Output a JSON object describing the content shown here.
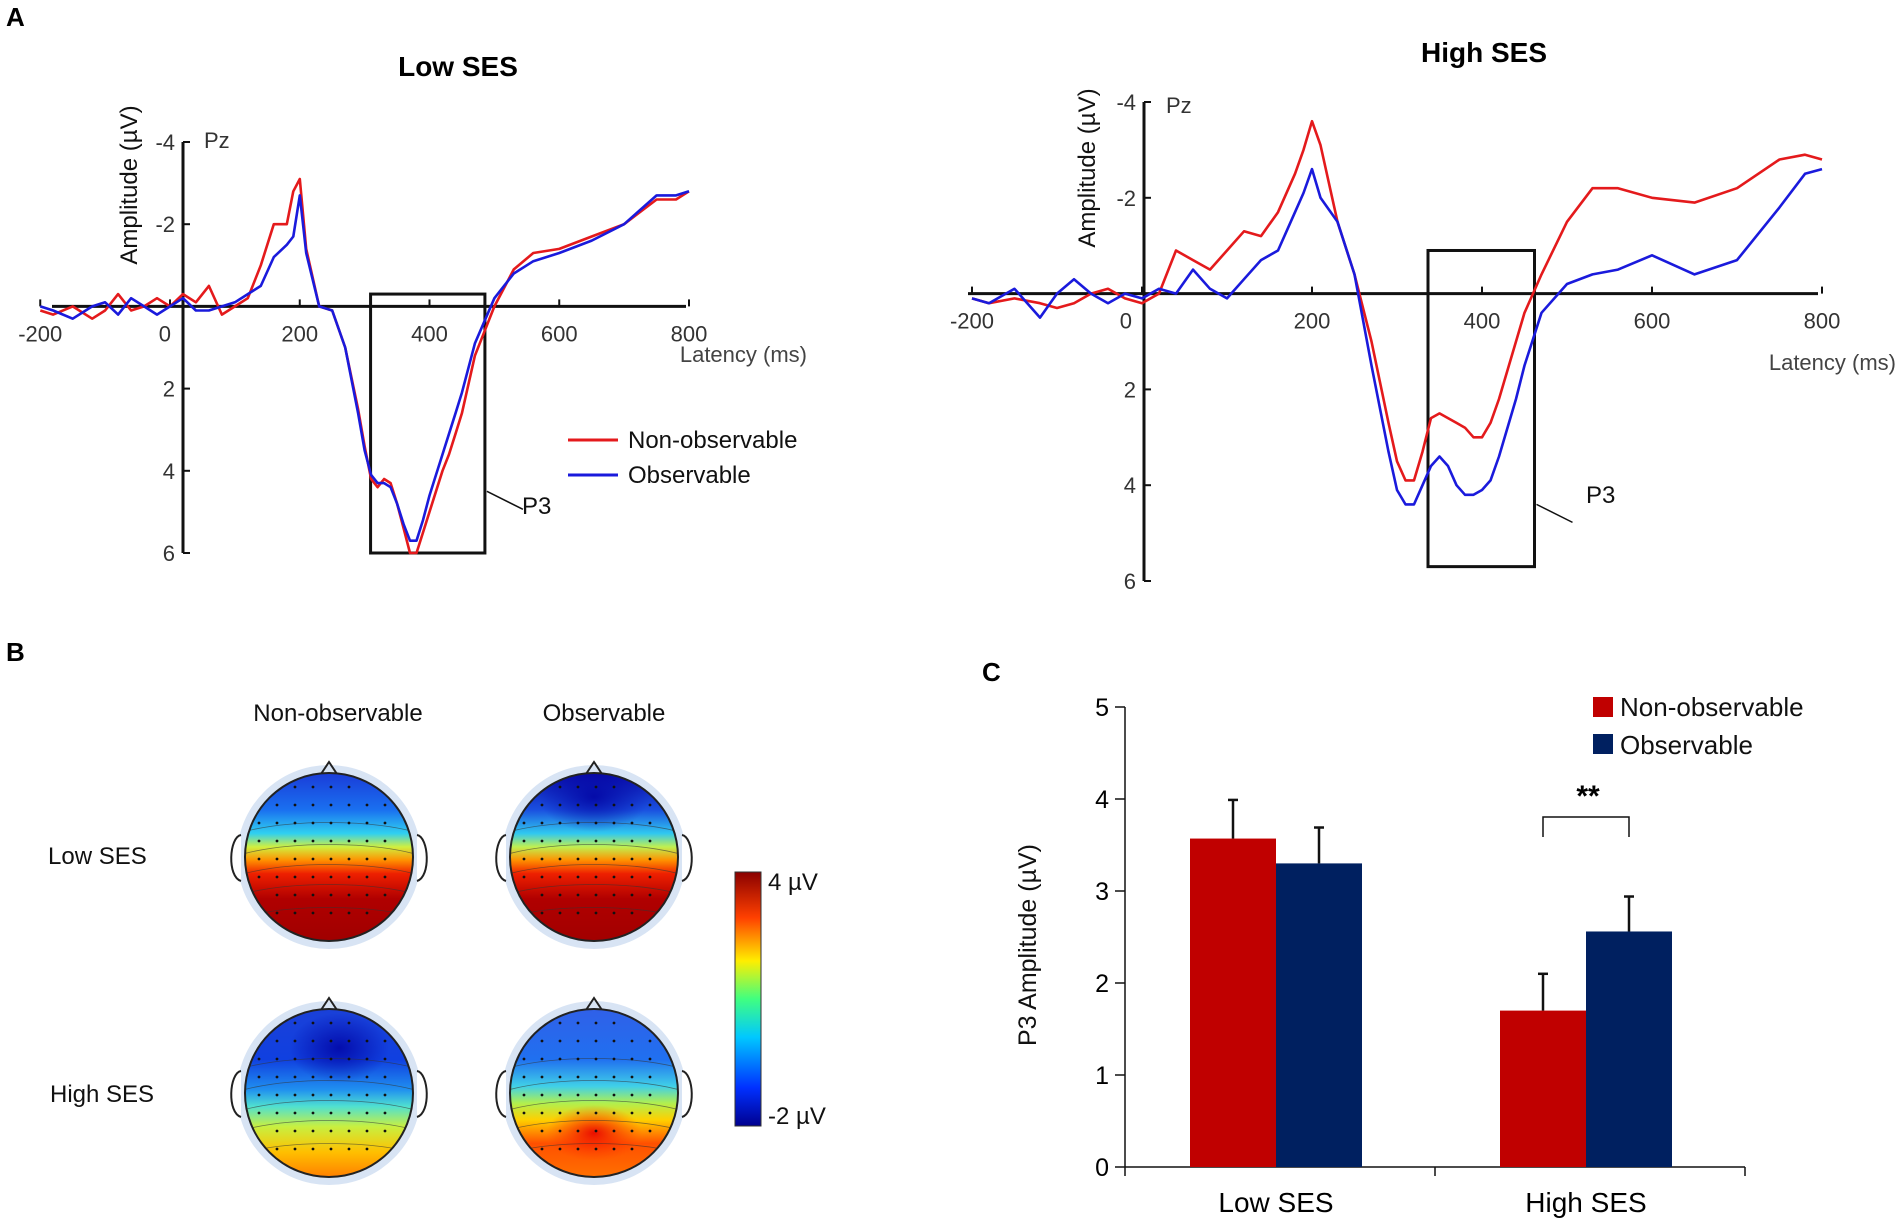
{
  "panels": {
    "a": "A",
    "b": "B",
    "c": "C"
  },
  "legend": {
    "non_observable": "Non-observable",
    "observable": "Observable"
  },
  "colors": {
    "non_observable_line": "#e41a1c",
    "observable_line": "#1a1adc",
    "non_observable_bar": "#c00000",
    "observable_bar": "#002060"
  },
  "chart_data": [
    {
      "type": "line",
      "title": "Low SES",
      "channel": "Pz",
      "xlabel": "Latency (ms)",
      "ylabel": "Amplitude (µV)",
      "xlim": [
        -200,
        800
      ],
      "ylim": [
        -4,
        6
      ],
      "y_inverted": true,
      "xticks": [
        -200,
        0,
        200,
        400,
        600,
        800
      ],
      "xtick_labels": [
        "-200",
        "0",
        "200",
        "400",
        "600",
        "800"
      ],
      "ytick_labels": [
        "-4",
        "-2",
        "2",
        "4",
        "6"
      ],
      "yticks": [
        -4,
        -2,
        2,
        4,
        6
      ],
      "window": [
        340,
        470
      ],
      "annotation": "P3",
      "x": [
        -200,
        -180,
        -150,
        -120,
        -100,
        -80,
        -60,
        -40,
        -20,
        0,
        20,
        40,
        60,
        80,
        100,
        120,
        140,
        160,
        180,
        190,
        200,
        210,
        230,
        250,
        270,
        290,
        300,
        310,
        320,
        330,
        340,
        350,
        360,
        370,
        380,
        390,
        400,
        410,
        420,
        430,
        440,
        450,
        470,
        500,
        530,
        560,
        600,
        650,
        700,
        750,
        780,
        800
      ],
      "series": [
        {
          "name": "Non-observable",
          "values": [
            0.1,
            0.2,
            0.0,
            0.3,
            0.1,
            -0.3,
            0.1,
            0.0,
            -0.2,
            0.0,
            -0.3,
            -0.1,
            -0.5,
            0.2,
            0.0,
            -0.2,
            -1.0,
            -2.0,
            -2.0,
            -2.8,
            -3.1,
            -1.4,
            0.0,
            0.1,
            1.0,
            2.5,
            3.4,
            4.2,
            4.4,
            4.2,
            4.3,
            4.8,
            5.4,
            6.0,
            6.0,
            5.5,
            5.0,
            4.5,
            4.0,
            3.6,
            3.1,
            2.6,
            1.2,
            0.0,
            -0.9,
            -1.3,
            -1.4,
            -1.7,
            -2.0,
            -2.6,
            -2.6,
            -2.8
          ]
        },
        {
          "name": "Observable",
          "values": [
            0.0,
            0.1,
            0.3,
            0.0,
            -0.1,
            0.2,
            -0.2,
            0.0,
            0.2,
            0.0,
            -0.2,
            0.1,
            0.1,
            0.0,
            -0.1,
            -0.3,
            -0.5,
            -1.2,
            -1.5,
            -1.7,
            -2.7,
            -1.3,
            0.0,
            0.1,
            1.0,
            2.6,
            3.5,
            4.1,
            4.3,
            4.3,
            4.4,
            4.8,
            5.3,
            5.7,
            5.7,
            5.2,
            4.6,
            4.1,
            3.6,
            3.1,
            2.6,
            2.1,
            0.9,
            -0.2,
            -0.8,
            -1.1,
            -1.3,
            -1.6,
            -2.0,
            -2.7,
            -2.7,
            -2.8
          ]
        }
      ]
    },
    {
      "type": "line",
      "title": "High SES",
      "channel": "Pz",
      "xlabel": "Latency (ms)",
      "ylabel": "Amplitude (µV)",
      "xlim": [
        -200,
        800
      ],
      "ylim": [
        -4,
        6
      ],
      "y_inverted": true,
      "xticks": [
        -200,
        0,
        200,
        400,
        600,
        800
      ],
      "xtick_labels": [
        "-200",
        "0",
        "200",
        "400",
        "600",
        "800"
      ],
      "ytick_labels": [
        "-4",
        "-2",
        "2",
        "4",
        "6"
      ],
      "yticks": [
        -4,
        -2,
        2,
        4,
        6
      ],
      "window": [
        360,
        450
      ],
      "annotation": "P3",
      "x": [
        -200,
        -180,
        -150,
        -120,
        -100,
        -80,
        -60,
        -40,
        -20,
        0,
        20,
        40,
        60,
        80,
        100,
        120,
        140,
        160,
        180,
        190,
        200,
        210,
        230,
        250,
        270,
        290,
        300,
        310,
        320,
        330,
        340,
        350,
        360,
        370,
        380,
        390,
        400,
        410,
        420,
        430,
        440,
        450,
        470,
        500,
        530,
        560,
        600,
        650,
        700,
        750,
        780,
        800
      ],
      "series": [
        {
          "name": "Non-observable",
          "values": [
            0.1,
            0.2,
            0.1,
            0.2,
            0.3,
            0.2,
            0.0,
            -0.1,
            0.1,
            0.2,
            0.0,
            -0.9,
            -0.7,
            -0.5,
            -0.9,
            -1.3,
            -1.2,
            -1.7,
            -2.5,
            -3.0,
            -3.6,
            -3.1,
            -1.5,
            -0.4,
            1.0,
            2.7,
            3.5,
            3.9,
            3.9,
            3.3,
            2.6,
            2.5,
            2.6,
            2.7,
            2.8,
            3.0,
            3.0,
            2.7,
            2.2,
            1.6,
            1.0,
            0.4,
            -0.4,
            -1.5,
            -2.2,
            -2.2,
            -2.0,
            -1.9,
            -2.2,
            -2.8,
            -2.9,
            -2.8
          ]
        },
        {
          "name": "Observable",
          "values": [
            0.1,
            0.2,
            -0.1,
            0.5,
            0.0,
            -0.3,
            0.0,
            0.2,
            0.0,
            0.1,
            -0.1,
            0.0,
            -0.5,
            -0.1,
            0.1,
            -0.3,
            -0.7,
            -0.9,
            -1.7,
            -2.1,
            -2.6,
            -2.0,
            -1.5,
            -0.4,
            1.5,
            3.3,
            4.1,
            4.4,
            4.4,
            4.0,
            3.6,
            3.4,
            3.6,
            4.0,
            4.2,
            4.2,
            4.1,
            3.9,
            3.4,
            2.8,
            2.2,
            1.5,
            0.4,
            -0.2,
            -0.4,
            -0.5,
            -0.8,
            -0.4,
            -0.7,
            -1.8,
            -2.5,
            -2.6
          ]
        }
      ]
    },
    {
      "type": "bar",
      "ylabel": "P3 Amplitude (µV)",
      "categories": [
        "Low SES",
        "High SES"
      ],
      "ylim": [
        0,
        5
      ],
      "yticks": [
        0,
        1,
        2,
        3,
        4,
        5
      ],
      "ytick_labels": [
        "0",
        "1",
        "2",
        "3",
        "4",
        "5"
      ],
      "significance": "**",
      "series": [
        {
          "name": "Non-observable",
          "values": [
            3.57,
            1.7
          ],
          "errors": [
            0.42,
            0.4
          ]
        },
        {
          "name": "Observable",
          "values": [
            3.3,
            2.56
          ],
          "errors": [
            0.39,
            0.38
          ]
        }
      ]
    }
  ],
  "topomaps": {
    "columns": [
      "Non-observable",
      "Observable"
    ],
    "rows": [
      "Low SES",
      "High SES"
    ],
    "colorbar": {
      "max_label": "4 µV",
      "min_label": "-2 µV",
      "max": 4,
      "min": -2
    },
    "maps": [
      {
        "row": "Low SES",
        "column": "Non-observable",
        "intensity": 0.92
      },
      {
        "row": "Low SES",
        "column": "Observable",
        "intensity": 0.88
      },
      {
        "row": "High SES",
        "column": "Non-observable",
        "intensity": 0.55
      },
      {
        "row": "High SES",
        "column": "Observable",
        "intensity": 0.7
      }
    ]
  }
}
